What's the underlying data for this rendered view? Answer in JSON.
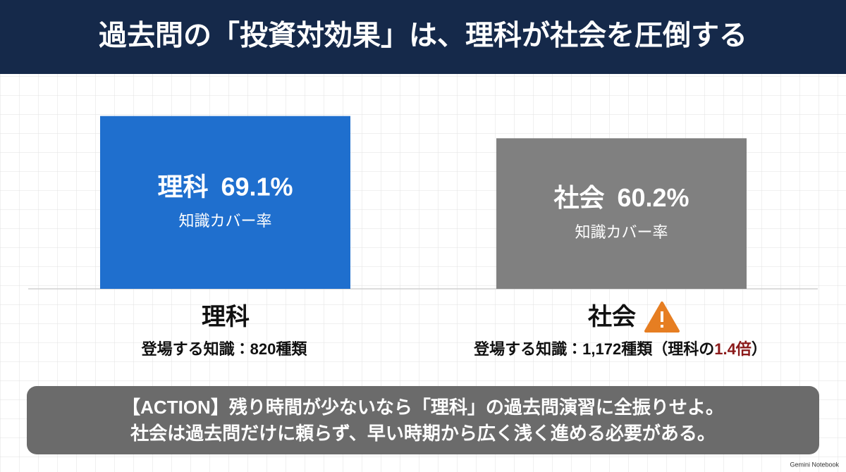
{
  "title": "過去問の「投資対効果」は、理科が社会を圧倒する",
  "chart_data": {
    "type": "bar",
    "categories": [
      "理科",
      "社会"
    ],
    "values": [
      69.1,
      60.2
    ],
    "value_labels": [
      "69.1%",
      "60.2%"
    ],
    "value_caption": "知識カバー率",
    "colors": [
      "#1f6fce",
      "#808080"
    ]
  },
  "details": [
    {
      "text": "登場する知識：820種類"
    },
    {
      "text": "登場する知識：1,172種類（理科の",
      "highlight": "1.4倍",
      "suffix": "）"
    }
  ],
  "action": [
    "【ACTION】残り時間が少ないなら「理科」の過去問演習に全振りせよ。",
    "社会は過去問だけに頼らず、早い時期から広く浅く進める必要がある。"
  ],
  "watermark": "Gemini Notebook"
}
